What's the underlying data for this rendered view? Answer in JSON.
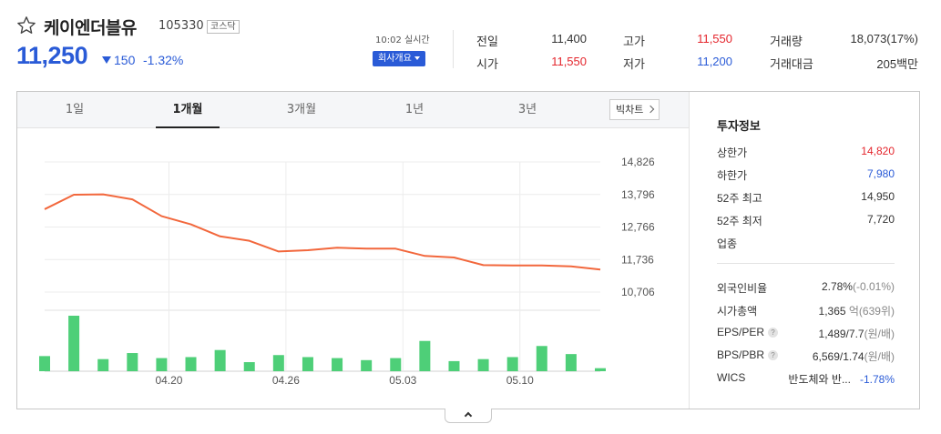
{
  "stock": {
    "name": "케이엔더블유",
    "code": "105330",
    "market": "코스닥",
    "price": "11,250",
    "change": "150",
    "change_pct": "-1.32%",
    "direction": "down",
    "time": "10:02 실시간",
    "company_btn": "회사개요"
  },
  "quote": {
    "prev_close_label": "전일",
    "prev_close": "11,400",
    "open_label": "시가",
    "open": "11,550",
    "high_label": "고가",
    "high": "11,550",
    "low_label": "저가",
    "low": "11,200",
    "volume_label": "거래량",
    "volume": "18,073(17%)",
    "amount_label": "거래대금",
    "amount": "205백만"
  },
  "tabs": [
    "1일",
    "1개월",
    "3개월",
    "1년",
    "3년"
  ],
  "active_tab": "1개월",
  "bigchart_label": "빅차트",
  "chart_data": {
    "type": "line",
    "y_ticks": [
      "14,826",
      "13,796",
      "12,766",
      "11,736",
      "10,706"
    ],
    "ylim": [
      10706,
      14826
    ],
    "x_ticks": [
      "04.20",
      "04.26",
      "05.03",
      "05.10"
    ],
    "prices": [
      13330,
      13790,
      13800,
      13640,
      13110,
      12850,
      12470,
      12330,
      11990,
      12030,
      12110,
      12080,
      12080,
      11850,
      11800,
      11560,
      11550,
      11550,
      11520,
      11420
    ],
    "volume": [
      15,
      55,
      12,
      18,
      13,
      14,
      21,
      9,
      16,
      14,
      13,
      11,
      13,
      30,
      10,
      12,
      14,
      25,
      17,
      3
    ],
    "line_color": "#f2673c",
    "bar_color": "#4ecf78"
  },
  "invest": {
    "title": "투자정보",
    "upper_label": "상한가",
    "upper": "14,820",
    "lower_label": "하한가",
    "lower": "7,980",
    "high52_label": "52주 최고",
    "high52": "14,950",
    "low52_label": "52주 최저",
    "low52": "7,720",
    "sector_label": "업종",
    "foreign_label": "외국인비율",
    "foreign_main": "2.78%",
    "foreign_sub": "(-0.01%)",
    "cap_label": "시가총액",
    "cap_main": "1,365",
    "cap_sub": "억(639위)",
    "eps_label": "EPS/PER",
    "eps_main": "1,489/7.7",
    "eps_sub": "(원/배)",
    "bps_label": "BPS/PBR",
    "bps_main": "6,569/1.74",
    "bps_sub": "(원/배)",
    "wics_label": "WICS",
    "wics_sector": "반도체와 반...",
    "wics_change": "-1.78%"
  }
}
